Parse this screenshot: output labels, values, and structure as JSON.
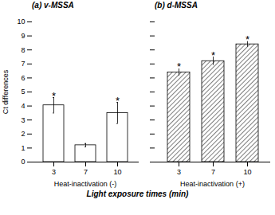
{
  "chart_data": [
    {
      "type": "bar",
      "title": "(a) v-MSSA",
      "subtitle": "Heat-inactivation (-)",
      "ylabel": "Ct differences",
      "categories": [
        "3",
        "7",
        "10"
      ],
      "values": [
        4.05,
        1.2,
        3.5
      ],
      "errors": [
        0.55,
        0.12,
        0.75
      ],
      "annotations": [
        {
          "category": "3",
          "text": "*"
        },
        {
          "category": "10",
          "text": "*"
        }
      ],
      "color": "#ffffff",
      "ylim": [
        0,
        10
      ],
      "yticks": [
        0,
        1,
        2,
        3,
        4,
        5,
        6,
        7,
        8,
        9,
        10
      ],
      "grid": false
    },
    {
      "type": "bar",
      "title": "(b) d-MSSA",
      "subtitle": "Heat-inactivation (+)",
      "categories": [
        "3",
        "7",
        "10"
      ],
      "values": [
        6.4,
        7.2,
        8.4
      ],
      "errors": [
        0.25,
        0.3,
        0.2
      ],
      "annotations": [
        {
          "category": "3",
          "text": "*"
        },
        {
          "category": "7",
          "text": "*"
        },
        {
          "category": "10",
          "text": "*"
        }
      ],
      "color": "#ffffff",
      "ylim": [
        0,
        10
      ],
      "yticks": [
        0,
        1,
        2,
        3,
        4,
        5,
        6,
        7,
        8,
        9,
        10
      ],
      "grid": false,
      "tick_labels": "x"
    }
  ],
  "xlabel": "Light exposure times (min)"
}
